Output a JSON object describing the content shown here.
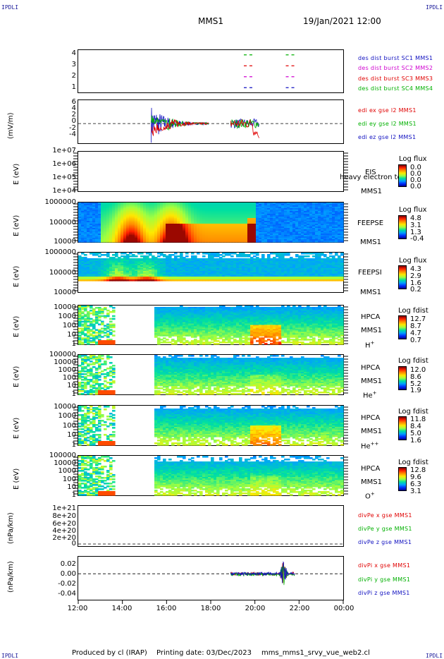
{
  "header": {
    "left_tag": "IPDLI",
    "right_tag": "IPDLI",
    "spacecraft": "MMS1",
    "datetime": "19/Jan/2021 12:00"
  },
  "footer": {
    "left_tag": "IPDLI",
    "right_tag": "IPDLI",
    "credit": "Produced by cl (IRAP)",
    "printing_date": "Printing date: 03/Dec/2023",
    "filename": "mms_mms1_srvy_vue_web2.cl"
  },
  "colors": {
    "sc1": "#1010c0",
    "sc2": "#d000d0",
    "sc3": "#e00000",
    "sc4": "#00b000"
  },
  "chart_data": [
    {
      "type": "scatter",
      "id": "des_burst",
      "yticks": [
        "4",
        "3",
        "2",
        "1"
      ],
      "ylim": [
        0.5,
        4.5
      ],
      "series": [
        {
          "name": "des dist burst SC1 MMS1",
          "color": "#1010c0",
          "y": 1,
          "intervals": [
            [
              19.5,
              20.0
            ],
            [
              21.4,
              21.8
            ]
          ]
        },
        {
          "name": "des dist burst SC2 MMS2",
          "color": "#d000d0",
          "y": 2,
          "intervals": [
            [
              19.5,
              20.0
            ],
            [
              21.4,
              21.8
            ]
          ]
        },
        {
          "name": "des dist burst SC3 MMS3",
          "color": "#e00000",
          "y": 3,
          "intervals": [
            [
              19.5,
              20.0
            ],
            [
              21.4,
              21.8
            ]
          ]
        },
        {
          "name": "des dist burst SC4 MMS4",
          "color": "#00b000",
          "y": 4,
          "intervals": [
            [
              19.5,
              20.0
            ],
            [
              21.4,
              21.8
            ]
          ]
        }
      ]
    },
    {
      "type": "line",
      "id": "edi",
      "ylabel": "(mV/m)",
      "yticks": [
        "6",
        "4",
        "2",
        "0",
        "-2",
        "-4"
      ],
      "ylim": [
        -5.5,
        6.5
      ],
      "series": [
        {
          "name": "edi ex gse l2 MMS1",
          "color": "#e00000"
        },
        {
          "name": "edi ey gse l2 MMS1",
          "color": "#00b000"
        },
        {
          "name": "edi ez gse l2 MMS1",
          "color": "#1010c0"
        }
      ]
    },
    {
      "type": "heatmap",
      "id": "eis",
      "ylabel": "E (eV)",
      "yticks": [
        "1e+07",
        "1e+06",
        "1e+05",
        "1e+04"
      ],
      "instrument": "EIS",
      "overlay": "heavy electron to",
      "sc": "MMS1",
      "colorbar_title": "Log flux",
      "colorbar_ticks": [
        "0.0",
        "0.0",
        "0.0",
        "0.0"
      ]
    },
    {
      "type": "heatmap",
      "id": "feepse",
      "ylabel": "E (eV)",
      "yticks": [
        "1000000",
        "100000",
        "10000"
      ],
      "instrument": "FEEPSE",
      "sc": "MMS1",
      "colorbar_title": "Log flux",
      "colorbar_ticks": [
        "4.8",
        "3.1",
        "1.3",
        "-0.4"
      ]
    },
    {
      "type": "heatmap",
      "id": "feepsi",
      "ylabel": "E (eV)",
      "yticks": [
        "1000000",
        "100000",
        "10000"
      ],
      "instrument": "FEEPSI",
      "sc": "MMS1",
      "colorbar_title": "Log flux",
      "colorbar_ticks": [
        "4.3",
        "2.9",
        "1.6",
        "0.2"
      ]
    },
    {
      "type": "heatmap",
      "id": "hpca_h",
      "ylabel": "E (eV)",
      "yticks": [
        "10000",
        "1000",
        "100",
        "10",
        "1"
      ],
      "instrument": "HPCA",
      "sc": "MMS1",
      "species": "H",
      "charge": "+",
      "colorbar_title": "Log fdist",
      "colorbar_ticks": [
        "12.7",
        "8.7",
        "4.7",
        "0.7"
      ]
    },
    {
      "type": "heatmap",
      "id": "hpca_he",
      "ylabel": "E (eV)",
      "yticks": [
        "100000",
        "10000",
        "1000",
        "100",
        "10",
        "1"
      ],
      "instrument": "HPCA",
      "sc": "MMS1",
      "species": "He",
      "charge": "+",
      "colorbar_title": "Log fdist",
      "colorbar_ticks": [
        "12.0",
        "8.6",
        "5.2",
        "1.9"
      ]
    },
    {
      "type": "heatmap",
      "id": "hpca_hepp",
      "ylabel": "E (eV)",
      "yticks": [
        "10000",
        "1000",
        "100",
        "10",
        "1"
      ],
      "instrument": "HPCA",
      "sc": "MMS1",
      "species": "He",
      "charge": "++",
      "colorbar_title": "Log fdist",
      "colorbar_ticks": [
        "11.8",
        "8.4",
        "5.0",
        "1.6"
      ]
    },
    {
      "type": "heatmap",
      "id": "hpca_o",
      "ylabel": "E (eV)",
      "yticks": [
        "100000",
        "10000",
        "1000",
        "100",
        "10",
        "1"
      ],
      "instrument": "HPCA",
      "sc": "MMS1",
      "species": "O",
      "charge": "+",
      "colorbar_title": "Log fdist",
      "colorbar_ticks": [
        "12.8",
        "9.6",
        "6.3",
        "3.1"
      ]
    },
    {
      "type": "line",
      "id": "divpe",
      "ylabel": "(nPa/km)",
      "yticks": [
        "1e+21",
        "8e+20",
        "6e+20",
        "4e+20",
        "2e+20",
        "0"
      ],
      "ylim": [
        -1e+19,
        1.05e+21
      ],
      "series": [
        {
          "name": "divPe x gse MMS1",
          "color": "#e00000"
        },
        {
          "name": "divPe y gse MMS1",
          "color": "#00b000"
        },
        {
          "name": "divPe z gse MMS1",
          "color": "#1010c0"
        }
      ]
    },
    {
      "type": "line",
      "id": "divpi",
      "ylabel": "(nPa/km)",
      "yticks": [
        "0.02",
        "0.00",
        "-0.02",
        "-0.04"
      ],
      "ylim": [
        -0.048,
        0.032
      ],
      "series": [
        {
          "name": "divPi x gse MMS1",
          "color": "#e00000"
        },
        {
          "name": "divPi y gse MMS1",
          "color": "#00b000"
        },
        {
          "name": "divPi z gse MMS1",
          "color": "#1010c0"
        }
      ]
    }
  ],
  "xaxis": {
    "ticks": [
      "12:00",
      "14:00",
      "16:00",
      "18:00",
      "20:00",
      "22:00",
      "00:00"
    ],
    "range_hours": [
      12,
      24
    ]
  }
}
